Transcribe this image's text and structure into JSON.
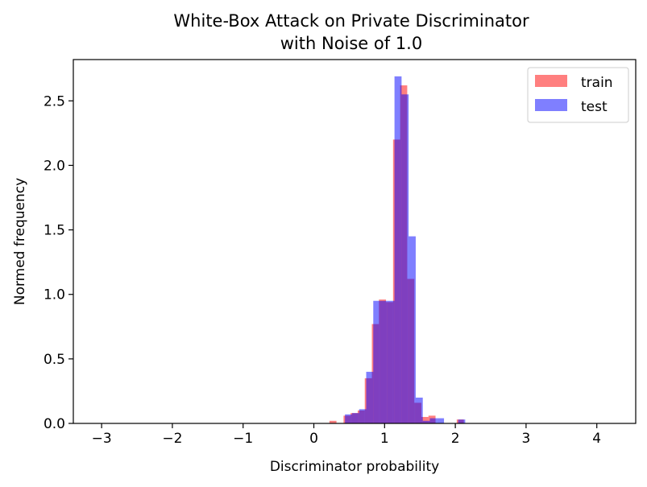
{
  "chart_data": {
    "type": "bar",
    "title_line1": "White-Box Attack on Private Discriminator",
    "title_line2": "with Noise of 1.0",
    "xlabel": "Discriminator probability",
    "ylabel": "Normed frequency",
    "xlim": [
      -3.4,
      4.55
    ],
    "ylim": [
      0,
      2.82
    ],
    "xticks": [
      -3,
      -2,
      -1,
      0,
      1,
      2,
      3,
      4
    ],
    "xtick_labels": [
      "−3",
      "−2",
      "−1",
      "0",
      "1",
      "2",
      "3",
      "4"
    ],
    "yticks": [
      0.0,
      0.5,
      1.0,
      1.5,
      2.0,
      2.5
    ],
    "ytick_labels": [
      "0.0",
      "0.5",
      "1.0",
      "1.5",
      "2.0",
      "2.5"
    ],
    "legend_position": "top-right",
    "grid": false,
    "series": [
      {
        "name": "train",
        "color": "#ff0000",
        "opacity": 0.5,
        "bin_width": 0.1,
        "bins": [
          {
            "x0": 0.22,
            "y": 0.02
          },
          {
            "x0": 0.42,
            "y": 0.06
          },
          {
            "x0": 0.52,
            "y": 0.08
          },
          {
            "x0": 0.62,
            "y": 0.1
          },
          {
            "x0": 0.72,
            "y": 0.35
          },
          {
            "x0": 0.82,
            "y": 0.77
          },
          {
            "x0": 0.92,
            "y": 0.96
          },
          {
            "x0": 1.02,
            "y": 0.94
          },
          {
            "x0": 1.12,
            "y": 2.2
          },
          {
            "x0": 1.22,
            "y": 2.62
          },
          {
            "x0": 1.32,
            "y": 1.12
          },
          {
            "x0": 1.42,
            "y": 0.16
          },
          {
            "x0": 1.52,
            "y": 0.05
          },
          {
            "x0": 1.62,
            "y": 0.06
          },
          {
            "x0": 2.02,
            "y": 0.03
          }
        ]
      },
      {
        "name": "test",
        "color": "#0000ff",
        "opacity": 0.5,
        "bin_width": 0.1,
        "bins": [
          {
            "x0": 0.44,
            "y": 0.07
          },
          {
            "x0": 0.54,
            "y": 0.08
          },
          {
            "x0": 0.64,
            "y": 0.11
          },
          {
            "x0": 0.74,
            "y": 0.4
          },
          {
            "x0": 0.84,
            "y": 0.95
          },
          {
            "x0": 0.94,
            "y": 0.95
          },
          {
            "x0": 1.04,
            "y": 0.95
          },
          {
            "x0": 1.14,
            "y": 2.69
          },
          {
            "x0": 1.24,
            "y": 2.55
          },
          {
            "x0": 1.34,
            "y": 1.45
          },
          {
            "x0": 1.44,
            "y": 0.2
          },
          {
            "x0": 1.54,
            "y": 0.02
          },
          {
            "x0": 1.64,
            "y": 0.04
          },
          {
            "x0": 1.74,
            "y": 0.04
          },
          {
            "x0": 2.04,
            "y": 0.03
          }
        ]
      }
    ]
  }
}
